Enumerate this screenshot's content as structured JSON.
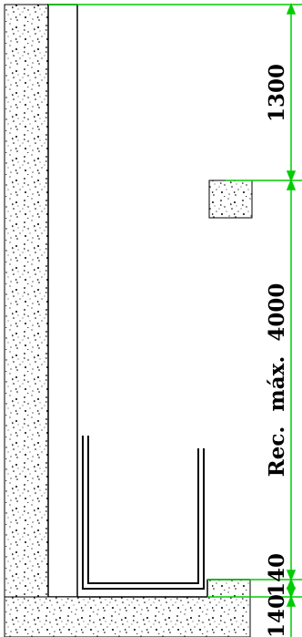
{
  "drawing": {
    "dimensions": {
      "top": "1300",
      "middle": "Rec.  máx.  4000",
      "slab": "140",
      "bottom": "140"
    }
  },
  "colors": {
    "line": "#000000",
    "dimension_line": "#00cc00",
    "background": "#ffffff",
    "speckle": "#000000"
  },
  "icons": {
    "concrete": "speckle-hatch"
  }
}
